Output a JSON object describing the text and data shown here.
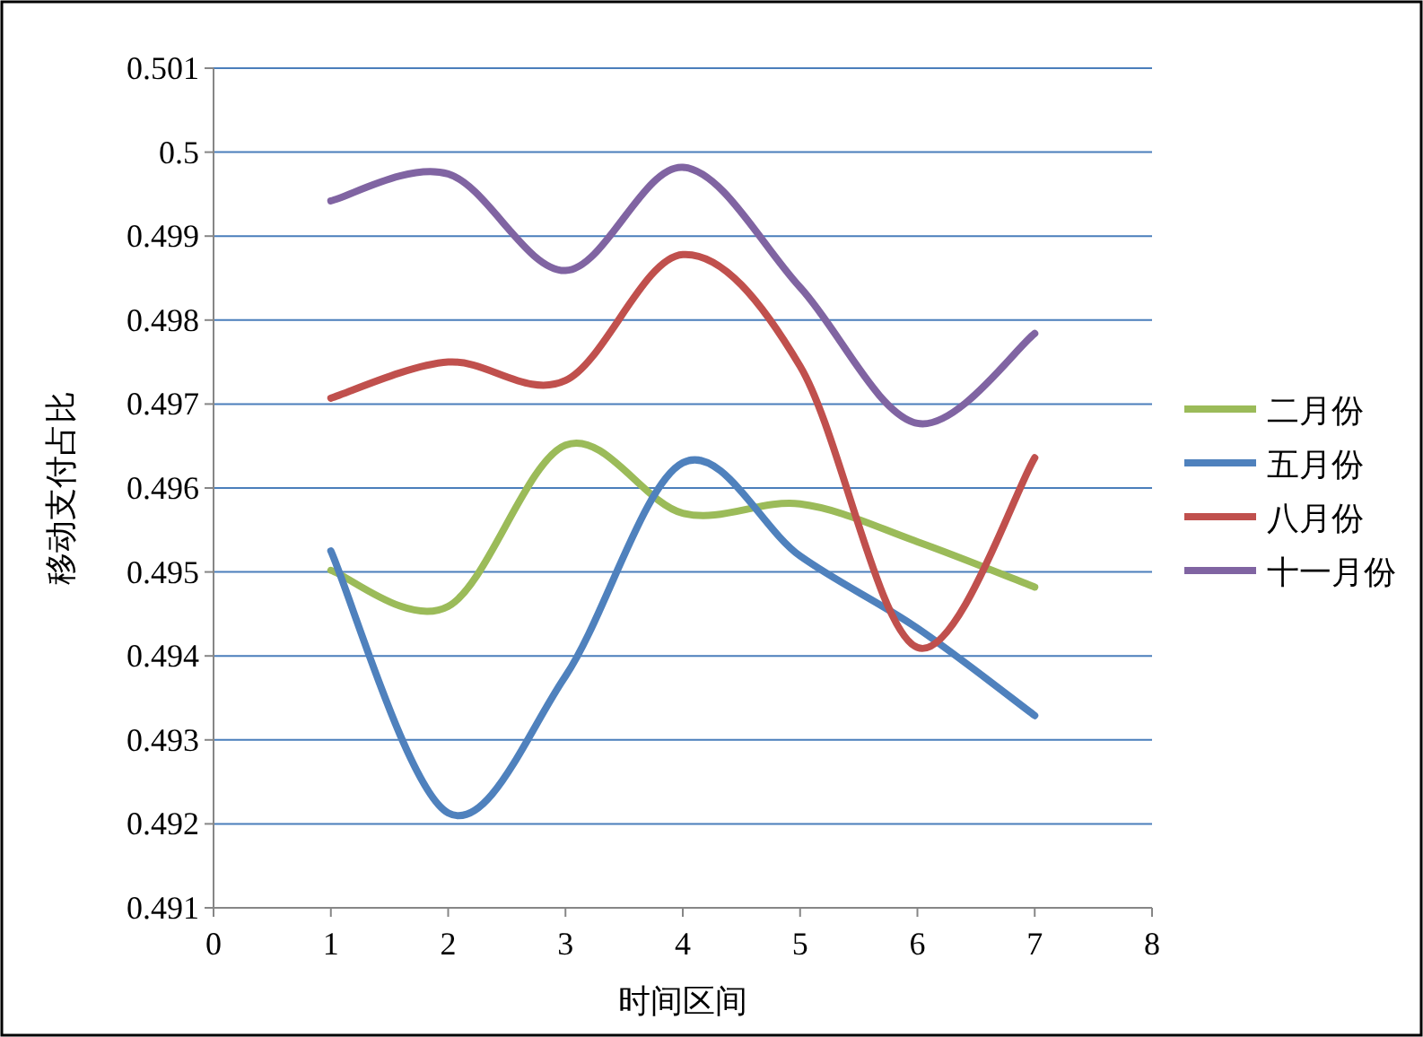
{
  "chart_data": {
    "type": "line",
    "xlabel": "时间区间",
    "ylabel": "移动支付占比",
    "x": [
      1,
      2,
      3,
      4,
      5,
      6,
      7
    ],
    "series": [
      {
        "name": "二月份",
        "color": "#9bbb59",
        "values": [
          0.49502,
          0.49459,
          0.49651,
          0.4957,
          0.49581,
          0.49536,
          0.49482
        ]
      },
      {
        "name": "五月份",
        "color": "#4f81bd",
        "values": [
          0.49525,
          0.49213,
          0.49376,
          0.4963,
          0.49519,
          0.49433,
          0.49329
        ]
      },
      {
        "name": "八月份",
        "color": "#c0504d",
        "values": [
          0.49707,
          0.4975,
          0.49728,
          0.49878,
          0.49745,
          0.4941,
          0.49636
        ]
      },
      {
        "name": "十一月份",
        "color": "#8064a2",
        "values": [
          0.49942,
          0.49974,
          0.49859,
          0.49982,
          0.49839,
          0.49677,
          0.49784
        ]
      }
    ],
    "xlim": [
      0,
      8
    ],
    "xticks": [
      0,
      1,
      2,
      3,
      4,
      5,
      6,
      7,
      8
    ],
    "ylim": [
      0.491,
      0.501
    ],
    "yticks": [
      0.491,
      0.492,
      0.493,
      0.494,
      0.495,
      0.496,
      0.497,
      0.498,
      0.499,
      0.5,
      0.501
    ],
    "grid": "y",
    "legend": "right"
  }
}
